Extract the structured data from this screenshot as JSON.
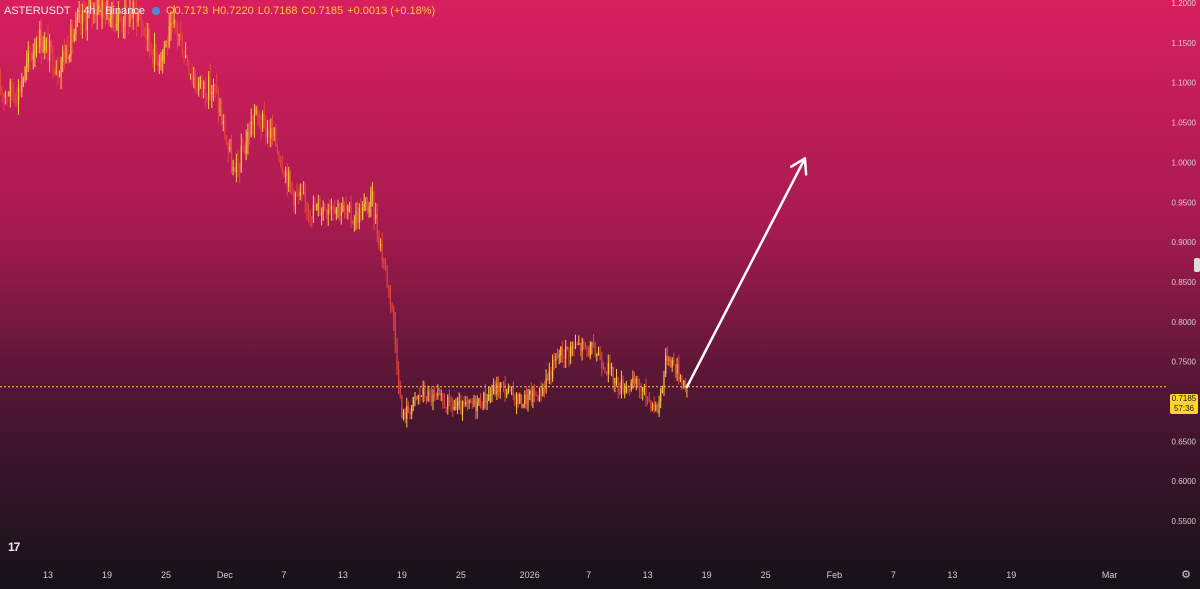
{
  "header": {
    "symbol": "ASTERUSDT",
    "interval": "4h",
    "exchange": "Binance",
    "open": "O0.7173",
    "high": "H0.7220",
    "low": "L0.7168",
    "close": "C0.7185",
    "change": "+0.0013 (+0.18%)"
  },
  "last_price": {
    "price": "0.7185",
    "countdown": "57:36"
  },
  "colors": {
    "bg_top": "#d81f5e",
    "bg_bottom": "#16121a",
    "candle_up": "#ffc83d",
    "candle_down": "#e8453c",
    "price_line": "#ffc83d",
    "arrow": "#ffffff"
  },
  "chart_data": {
    "type": "candlestick",
    "interval": "4h",
    "y_axis": {
      "min": 0.525,
      "max": 1.2,
      "ticks": [
        "1.2000",
        "1.1500",
        "1.1000",
        "1.0500",
        "1.0000",
        "0.9500",
        "0.9000",
        "0.8500",
        "0.8000",
        "0.7500",
        "0.7000",
        "0.6500",
        "0.6000",
        "0.5500"
      ]
    },
    "x_axis": {
      "ticks": [
        "13",
        "19",
        "25",
        "Dec",
        "7",
        "13",
        "19",
        "25",
        "2026",
        "7",
        "13",
        "19",
        "25",
        "Feb",
        "7",
        "13",
        "19",
        "Mar"
      ]
    },
    "price_path": [
      {
        "x": "Nov 10",
        "y": 1.09
      },
      {
        "x": "Nov 12",
        "y": 1.16
      },
      {
        "x": "Nov 14",
        "y": 1.12
      },
      {
        "x": "Nov 16",
        "y": 1.17
      },
      {
        "x": "Nov 18",
        "y": 1.2
      },
      {
        "x": "Nov 20",
        "y": 1.18
      },
      {
        "x": "Nov 22",
        "y": 1.19
      },
      {
        "x": "Nov 24",
        "y": 1.13
      },
      {
        "x": "Nov 26",
        "y": 1.17
      },
      {
        "x": "Nov 28",
        "y": 1.1
      },
      {
        "x": "Nov 30",
        "y": 1.09
      },
      {
        "x": "Dec 2",
        "y": 0.98
      },
      {
        "x": "Dec 4",
        "y": 1.06
      },
      {
        "x": "Dec 6",
        "y": 1.03
      },
      {
        "x": "Dec 8",
        "y": 0.96
      },
      {
        "x": "Dec 10",
        "y": 0.94
      },
      {
        "x": "Dec 12",
        "y": 0.95
      },
      {
        "x": "Dec 14",
        "y": 0.93
      },
      {
        "x": "Dec 16",
        "y": 0.95
      },
      {
        "x": "Dec 18",
        "y": 0.82
      },
      {
        "x": "Dec 19",
        "y": 0.68
      },
      {
        "x": "Dec 21",
        "y": 0.71
      },
      {
        "x": "Dec 23",
        "y": 0.7
      },
      {
        "x": "Dec 25",
        "y": 0.69
      },
      {
        "x": "Dec 27",
        "y": 0.7
      },
      {
        "x": "Dec 29",
        "y": 0.72
      },
      {
        "x": "Dec 31",
        "y": 0.7
      },
      {
        "x": "Jan 2",
        "y": 0.71
      },
      {
        "x": "Jan 4",
        "y": 0.76
      },
      {
        "x": "Jan 6",
        "y": 0.77
      },
      {
        "x": "Jan 8",
        "y": 0.76
      },
      {
        "x": "Jan 10",
        "y": 0.72
      },
      {
        "x": "Jan 12",
        "y": 0.72
      },
      {
        "x": "Jan 14",
        "y": 0.69
      },
      {
        "x": "Jan 15",
        "y": 0.76
      },
      {
        "x": "Jan 17",
        "y": 0.7185
      }
    ],
    "projection_arrow": {
      "from": {
        "x": "Jan 17",
        "y": 0.7185
      },
      "to": {
        "x": "Jan 29",
        "y": 1.005
      }
    }
  }
}
